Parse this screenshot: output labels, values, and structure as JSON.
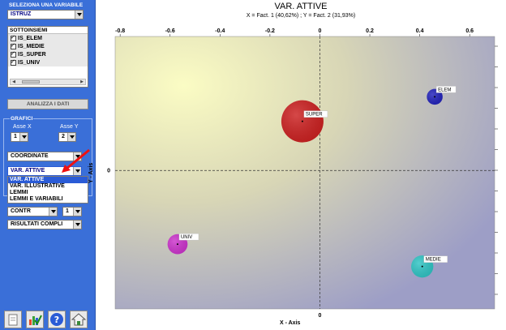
{
  "sidebar": {
    "variable_caption": "SELEZIONA UNA  VARIABILE",
    "variable_value": "ISTRUZ",
    "subsets_header": "SOTTOINSIEMI",
    "subsets": [
      "IS_ELEM",
      "IS_MEDIE",
      "IS_SUPER",
      "IS_UNIV"
    ],
    "analyze_label": "ANALIZZA I DATI",
    "graphs_caption": "GRAFICI",
    "axis_x_caption": "Asse X",
    "axis_x_value": "1",
    "axis_y_caption": "Asse Y",
    "axis_y_value": "2",
    "display_value": "COORDINATE",
    "type_value": "VAR. ATTIVE",
    "type_options": [
      "VAR. ATTIVE",
      "VAR. ILLUSTRATIVE",
      "LEMMI",
      "LEMMI E VARIABILI"
    ],
    "contr_value": "CONTR",
    "contr_num": "1",
    "results_value": "RISULTATI COMPLI"
  },
  "colors": {
    "panel": "#3a6fd8",
    "super": "#cc2020",
    "elem": "#2222bb",
    "univ": "#cc33cc",
    "medie": "#2fc4c4"
  },
  "chart_data": {
    "type": "scatter",
    "title": "VAR. ATTIVE",
    "subtitle": "X = Fact. 1 (40,62%) ; Y = Fact. 2 (31,93%)",
    "xlabel": "X - Axis",
    "ylabel": "Y - Axis",
    "xlim": [
      -0.82,
      0.7
    ],
    "x_ticks": [
      "-0.8",
      "-0.6",
      "-0.4",
      "-0.2",
      "0",
      "0.2",
      "0.4",
      "0.6"
    ],
    "x_tick_values": [
      -0.8,
      -0.6,
      -0.4,
      -0.2,
      0,
      0.2,
      0.4,
      0.6
    ],
    "y_ticks": [
      "0"
    ],
    "y_tick_values": [
      0
    ],
    "ylim": [
      -0.62,
      0.6
    ],
    "grid": false,
    "points": [
      {
        "label": "SUPER",
        "x": -0.07,
        "y": 0.22,
        "size": 4,
        "color": "#cc2020"
      },
      {
        "label": "ELEM",
        "x": 0.46,
        "y": 0.33,
        "size": 1.5,
        "color": "#2222bb"
      },
      {
        "label": "UNIV",
        "x": -0.57,
        "y": -0.33,
        "size": 1.9,
        "color": "#cc33cc"
      },
      {
        "label": "MEDIE",
        "x": 0.41,
        "y": -0.43,
        "size": 2.1,
        "color": "#2fc4c4"
      }
    ]
  }
}
